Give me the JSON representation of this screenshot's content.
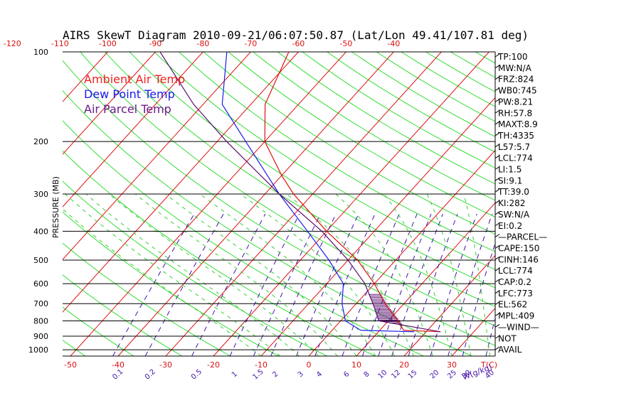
{
  "chart_data": {
    "type": "line",
    "title": "AIRS SkewT Diagram 2010-09-21/06:07:50.87 (Lat/Lon 49.41/107.81 deg)",
    "ylabel": "PRESSURE (MB)",
    "xlabel_bottom_temp": "T(C)",
    "xlabel_bottom_mix": "W(g/kg)",
    "pressure_levels": [
      100,
      200,
      300,
      400,
      500,
      600,
      700,
      800,
      900,
      1000
    ],
    "pressure_range": [
      100,
      1050
    ],
    "temp_range_bottom": [
      -50,
      40
    ],
    "bottom_temp_ticks": [
      -50,
      -40,
      -30,
      -20,
      -10,
      0,
      10,
      20,
      30,
      40
    ],
    "bottom_temp_labels": [
      "-50",
      "-40",
      "-30",
      "-20",
      "-10",
      "0",
      "10",
      "20",
      "30"
    ],
    "top_temp_ticks": [
      -120,
      -110,
      -100,
      -90,
      -80,
      -70,
      -60,
      -50,
      -40
    ],
    "mixing_ratio_labels": [
      "0.1",
      "0.2",
      "0.5",
      "1",
      "1.5",
      "2",
      "3",
      "4",
      "6",
      "8",
      "10",
      "12",
      "15",
      "20",
      "25",
      "30",
      "40"
    ],
    "mixing_ratio_values": [
      0.1,
      0.2,
      0.5,
      1,
      1.5,
      2,
      3,
      4,
      6,
      8,
      10,
      12,
      15,
      20,
      25,
      30,
      40
    ],
    "legend": [
      {
        "label": "Ambient Air Temp",
        "color": "#ee2222"
      },
      {
        "label": "Dew Point Temp",
        "color": "#1a1aee"
      },
      {
        "label": "Air Parcel Temp",
        "color": "#6a1a8a"
      }
    ],
    "series": [
      {
        "name": "Ambient Air Temp",
        "color": "#dd1111",
        "points": [
          [
            870,
            23
          ],
          [
            860,
            15
          ],
          [
            800,
            12
          ],
          [
            700,
            6
          ],
          [
            600,
            0
          ],
          [
            500,
            -8
          ],
          [
            400,
            -20
          ],
          [
            300,
            -34
          ],
          [
            260,
            -40
          ],
          [
            200,
            -50
          ],
          [
            150,
            -57
          ],
          [
            100,
            -62
          ]
        ]
      },
      {
        "name": "Dew Point Temp",
        "color": "#1a1aee",
        "points": [
          [
            870,
            17.5
          ],
          [
            860,
            6
          ],
          [
            800,
            1
          ],
          [
            700,
            -3
          ],
          [
            600,
            -6.5
          ],
          [
            500,
            -14
          ],
          [
            400,
            -24
          ],
          [
            300,
            -37
          ],
          [
            200,
            -54
          ],
          [
            150,
            -66
          ],
          [
            100,
            -75
          ]
        ]
      },
      {
        "name": "Air Parcel Temp",
        "color": "#5a1070",
        "points": [
          [
            870,
            23
          ],
          [
            800,
            8
          ],
          [
            700,
            3.5
          ],
          [
            600,
            -2
          ],
          [
            500,
            -10
          ],
          [
            400,
            -21
          ],
          [
            300,
            -37
          ],
          [
            200,
            -58
          ],
          [
            150,
            -72
          ],
          [
            100,
            -89
          ]
        ]
      }
    ],
    "indices": [
      "TP:100",
      "MW:N/A",
      "FRZ:824",
      "WB0:745",
      "PW:8.21",
      "RH:57.8",
      "MAXT:8.9",
      "TH:4335",
      "L57:5.7",
      "LCL:774",
      "LI:1.5",
      "SI:9.1",
      "TT:39.0",
      "KI:282",
      "SW:N/A",
      "EI:0.2",
      "—PARCEL—",
      "CAPE:150",
      "CINH:146",
      "LCL:774",
      "CAP:0.2",
      "LFC:773",
      "EL:562",
      "MPL:409",
      "—WIND—",
      "NOT",
      "AVAIL"
    ]
  }
}
